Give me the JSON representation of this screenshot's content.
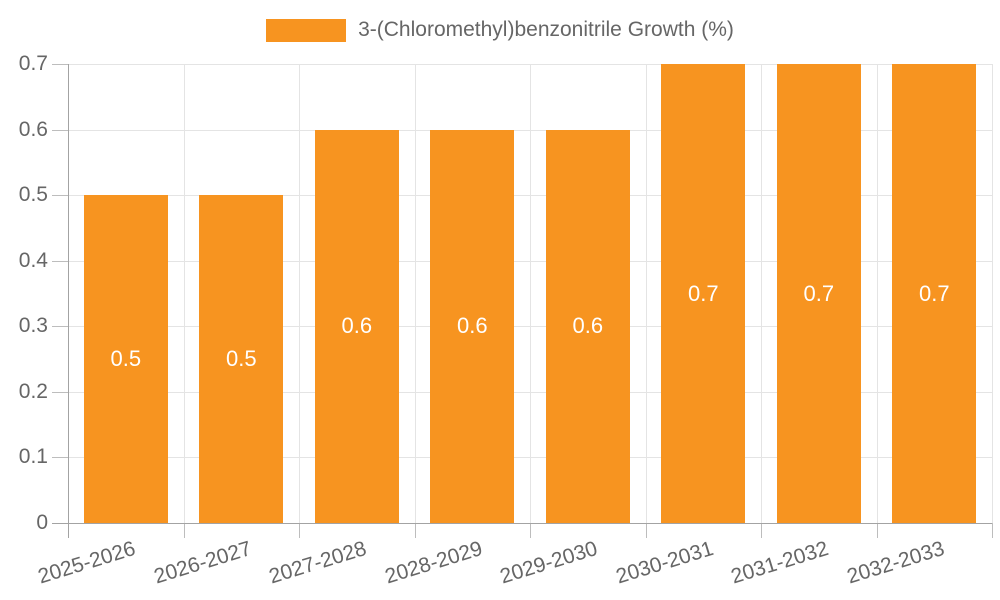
{
  "legend": {
    "label": "3-(Chloromethyl)benzonitrile Growth (%)"
  },
  "chart_data": {
    "type": "bar",
    "title": "3-(Chloromethyl)benzonitrile Growth (%)",
    "categories": [
      "2025-2026",
      "2026-2027",
      "2027-2028",
      "2028-2029",
      "2029-2030",
      "2030-2031",
      "2031-2032",
      "2032-2033"
    ],
    "values": [
      0.5,
      0.5,
      0.6,
      0.6,
      0.6,
      0.7,
      0.7,
      0.7
    ],
    "xlabel": "",
    "ylabel": "",
    "ylim": [
      0,
      0.7
    ],
    "yticks": [
      0,
      0.1,
      0.2,
      0.3,
      0.4,
      0.5,
      0.6,
      0.7
    ],
    "grid": true,
    "legend_position": "top-center",
    "value_labels": "inside-center"
  },
  "colors": {
    "bar": "#F79420",
    "value_label": "#FFFFFF",
    "axis_line": "#A3A3A3",
    "grid_line": "#E4E4E4",
    "tick_line": "#BDBDBD",
    "text": "#666666"
  }
}
